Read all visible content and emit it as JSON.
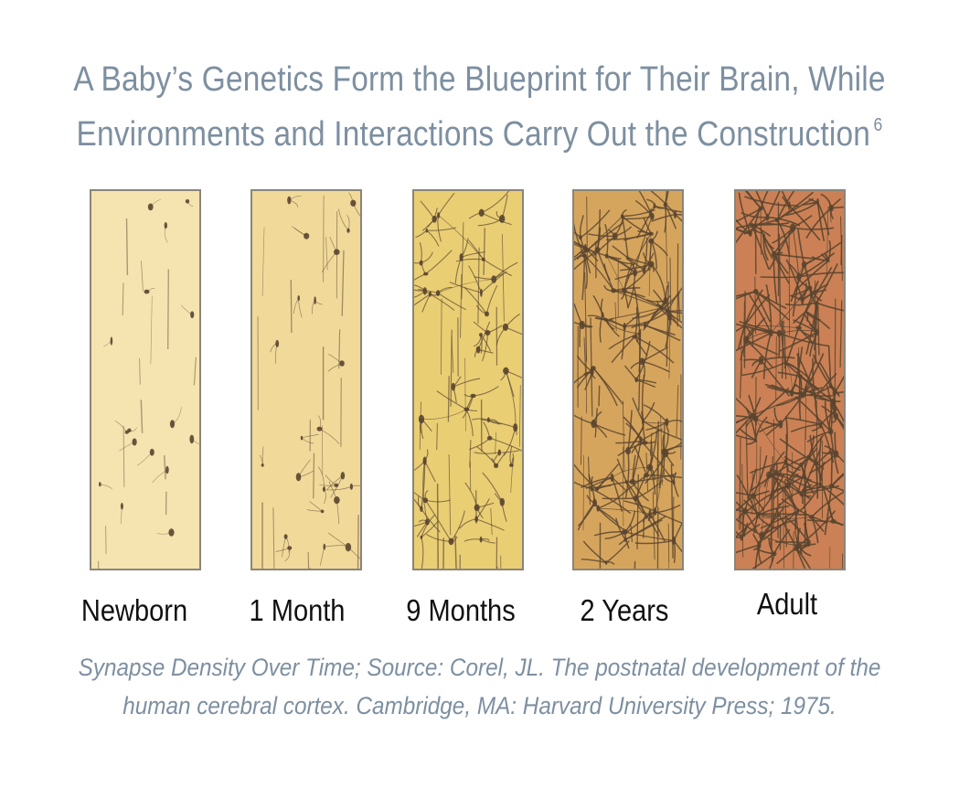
{
  "title": {
    "line1": "A Baby’s Genetics Form the Blueprint for Their Brain, While",
    "line2": "Environments and Interactions Carry Out the Construction",
    "footnote": "6"
  },
  "stages": [
    {
      "label": "Newborn",
      "fill": "#f5e3b0",
      "density": 0.08
    },
    {
      "label": "1 Month",
      "fill": "#f1d99a",
      "density": 0.2
    },
    {
      "label": "9 Months",
      "fill": "#e9ce74",
      "density": 0.5
    },
    {
      "label": "2 Years",
      "fill": "#d6a55d",
      "density": 0.85
    },
    {
      "label": "Adult",
      "fill": "#cb8155",
      "density": 1.0
    }
  ],
  "caption": {
    "line1": "Synapse Density Over Time; Source: Corel, JL. The postnatal development of the",
    "line2": "human cerebral cortex. Cambridge, MA: Harvard University Press; 1975."
  },
  "colors": {
    "title": "#7d8fa0",
    "neuron_ink": "#5a4530",
    "panel_border": "#8a857b"
  }
}
